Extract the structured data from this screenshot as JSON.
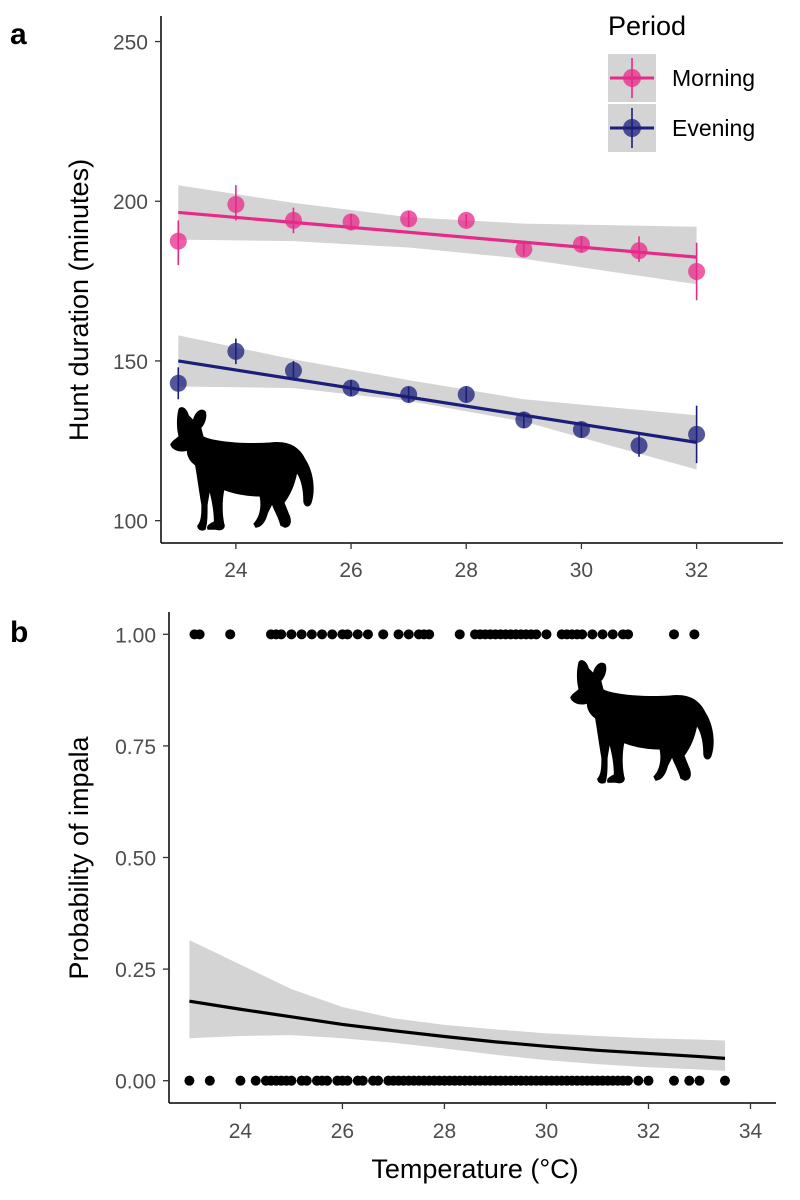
{
  "chart_data": [
    {
      "panel": "a",
      "type": "line",
      "xlabel": "",
      "ylabel": "Hunt duration (minutes)",
      "xlim": [
        22.7,
        33.5
      ],
      "ylim": [
        93,
        258
      ],
      "x_ticks": [
        24,
        26,
        28,
        30,
        32
      ],
      "y_ticks": [
        100,
        150,
        200,
        250
      ],
      "x_tick_labels": [
        "24",
        "26",
        "28",
        "30",
        "32"
      ],
      "y_tick_labels": [
        "100",
        "150",
        "200",
        "250"
      ],
      "grid": false,
      "legend": {
        "title": "Period",
        "placement": "top-right",
        "entries": [
          {
            "label": "Morning",
            "color": "#e7298a"
          },
          {
            "label": "Evening",
            "color": "#1b1f7a"
          }
        ]
      },
      "series": [
        {
          "name": "Morning",
          "color": "#e7298a",
          "points": [
            {
              "x": 23,
              "y": 187.5,
              "lo": 180,
              "hi": 194
            },
            {
              "x": 24,
              "y": 199,
              "lo": 194,
              "hi": 205
            },
            {
              "x": 25,
              "y": 194,
              "lo": 190,
              "hi": 198
            },
            {
              "x": 26,
              "y": 193.5,
              "lo": 191,
              "hi": 196
            },
            {
              "x": 27,
              "y": 194.5,
              "lo": 192,
              "hi": 197
            },
            {
              "x": 28,
              "y": 194,
              "lo": 192,
              "hi": 196
            },
            {
              "x": 29,
              "y": 185,
              "lo": 183,
              "hi": 187
            },
            {
              "x": 30,
              "y": 186.5,
              "lo": 184,
              "hi": 189
            },
            {
              "x": 31,
              "y": 184.5,
              "lo": 181,
              "hi": 189
            },
            {
              "x": 32,
              "y": 178,
              "lo": 169,
              "hi": 187
            }
          ],
          "fit": {
            "x": [
              23,
              32
            ],
            "y": [
              196.5,
              182.5
            ]
          },
          "band": {
            "x": [
              23,
              25,
              27,
              29,
              32
            ],
            "lo": [
              188,
              187.5,
              185.5,
              182,
              174
            ],
            "hi": [
              205,
              199.5,
              195,
              193,
              192
            ]
          }
        },
        {
          "name": "Evening",
          "color": "#1b1f7a",
          "points": [
            {
              "x": 23,
              "y": 143,
              "lo": 138,
              "hi": 148
            },
            {
              "x": 24,
              "y": 153,
              "lo": 149,
              "hi": 157
            },
            {
              "x": 25,
              "y": 147,
              "lo": 144,
              "hi": 150
            },
            {
              "x": 26,
              "y": 141.5,
              "lo": 139,
              "hi": 144
            },
            {
              "x": 27,
              "y": 139.5,
              "lo": 137,
              "hi": 142
            },
            {
              "x": 28,
              "y": 139.5,
              "lo": 137,
              "hi": 142
            },
            {
              "x": 29,
              "y": 131.5,
              "lo": 129,
              "hi": 134
            },
            {
              "x": 30,
              "y": 128.5,
              "lo": 126,
              "hi": 131
            },
            {
              "x": 31,
              "y": 123.5,
              "lo": 120,
              "hi": 127
            },
            {
              "x": 32,
              "y": 127,
              "lo": 118,
              "hi": 136
            }
          ],
          "fit": {
            "x": [
              23,
              32
            ],
            "y": [
              150,
              124.5
            ]
          },
          "band": {
            "x": [
              23,
              25,
              27,
              29,
              32
            ],
            "lo": [
              142,
              141.5,
              137.5,
              131,
              116
            ],
            "hi": [
              158,
              150.5,
              144,
              138,
              133
            ]
          }
        }
      ]
    },
    {
      "panel": "b",
      "type": "scatter",
      "xlabel": "Temperature (°C)",
      "ylabel": "Probability of impala",
      "xlim": [
        22.6,
        34.5
      ],
      "ylim": [
        -0.05,
        1.05
      ],
      "x_ticks": [
        24,
        26,
        28,
        30,
        32,
        34
      ],
      "y_ticks": [
        0,
        0.25,
        0.5,
        0.75,
        1.0
      ],
      "x_tick_labels": [
        "24",
        "26",
        "28",
        "30",
        "32",
        "34"
      ],
      "y_tick_labels": [
        "0.00",
        "0.25",
        "0.50",
        "0.75",
        "1.00"
      ],
      "grid": false,
      "color": "#000000",
      "points_y1": [
        23.1,
        23.2,
        23.8,
        24.6,
        24.7,
        24.8,
        25.0,
        25.2,
        25.4,
        25.6,
        25.8,
        26.0,
        26.1,
        26.3,
        26.5,
        26.8,
        27.1,
        27.3,
        27.5,
        27.6,
        27.7,
        28.3,
        28.6,
        28.7,
        28.8,
        28.9,
        29.0,
        29.1,
        29.2,
        29.3,
        29.4,
        29.5,
        29.6,
        29.7,
        29.8,
        30.0,
        30.3,
        30.4,
        30.5,
        30.6,
        30.7,
        30.9,
        31.1,
        31.3,
        31.5,
        31.6,
        32.5,
        32.9
      ],
      "points_y0": [
        23.0,
        23.4,
        24.0,
        24.3,
        24.5,
        24.6,
        24.7,
        24.8,
        24.9,
        25.0,
        25.2,
        25.3,
        25.5,
        25.6,
        25.7,
        25.9,
        26.0,
        26.1,
        26.3,
        26.4,
        26.6,
        26.7,
        26.9,
        27.0,
        27.1,
        27.2,
        27.3,
        27.4,
        27.5,
        27.6,
        27.7,
        27.8,
        27.9,
        28.0,
        28.1,
        28.2,
        28.3,
        28.4,
        28.5,
        28.6,
        28.7,
        28.8,
        28.9,
        29.0,
        29.1,
        29.2,
        29.3,
        29.4,
        29.5,
        29.6,
        29.7,
        29.8,
        29.9,
        30.0,
        30.1,
        30.2,
        30.3,
        30.4,
        30.5,
        30.6,
        30.7,
        30.8,
        30.9,
        31.0,
        31.1,
        31.2,
        31.3,
        31.4,
        31.5,
        31.6,
        31.8,
        32.0,
        32.5,
        32.8,
        33.0,
        33.5
      ],
      "fit": {
        "x": [
          23.0,
          24.0,
          25.0,
          26.0,
          27.0,
          28.0,
          29.0,
          30.0,
          31.0,
          32.0,
          33.0,
          33.5
        ],
        "y": [
          0.178,
          0.16,
          0.143,
          0.126,
          0.112,
          0.099,
          0.087,
          0.077,
          0.068,
          0.061,
          0.054,
          0.05
        ]
      },
      "band": {
        "x": [
          23.0,
          24.0,
          25.0,
          26.0,
          27.0,
          28.0,
          29.0,
          30.0,
          31.0,
          32.0,
          33.0,
          33.5
        ],
        "lo": [
          0.095,
          0.1,
          0.102,
          0.095,
          0.085,
          0.072,
          0.058,
          0.046,
          0.037,
          0.03,
          0.025,
          0.022
        ],
        "hi": [
          0.315,
          0.26,
          0.205,
          0.165,
          0.14,
          0.125,
          0.115,
          0.106,
          0.1,
          0.095,
          0.092,
          0.09
        ]
      }
    }
  ],
  "panel_tags": {
    "a": "a",
    "b": "b"
  },
  "icons": {
    "dog_a": "wild-dog-silhouette-icon",
    "dog_b": "wild-dog-silhouette-icon"
  },
  "colors": {
    "band": "#d4d4d4",
    "axis": "#000000",
    "tick_label": "#4d4d4d"
  }
}
